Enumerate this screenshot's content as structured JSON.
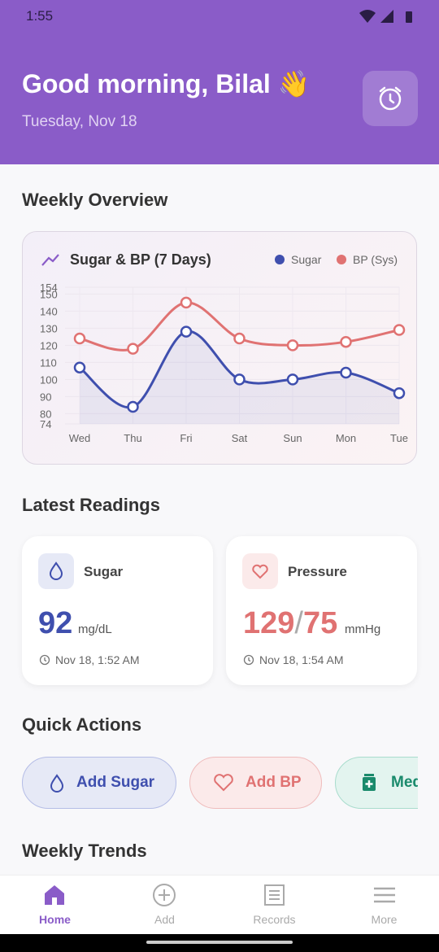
{
  "status_bar": {
    "time": "1:55"
  },
  "header": {
    "greeting": "Good morning, Bilal 👋",
    "date": "Tuesday, Nov 18"
  },
  "weekly_overview": {
    "title": "Weekly Overview"
  },
  "chart_data": {
    "type": "line",
    "title": "Sugar & BP (7 Days)",
    "categories": [
      "Wed",
      "Thu",
      "Fri",
      "Sat",
      "Sun",
      "Mon",
      "Tue"
    ],
    "series": [
      {
        "name": "Sugar",
        "color": "#3f4fae",
        "values": [
          107,
          84,
          128,
          100,
          100,
          104,
          92
        ]
      },
      {
        "name": "BP (Sys)",
        "color": "#e07272",
        "values": [
          124,
          118,
          145,
          124,
          120,
          122,
          129
        ]
      }
    ],
    "ylim": [
      74,
      154
    ],
    "yticks": [
      74,
      80,
      90,
      100,
      110,
      120,
      130,
      140,
      150,
      154
    ],
    "grid": true
  },
  "latest_readings": {
    "title": "Latest Readings",
    "sugar": {
      "label": "Sugar",
      "value": "92",
      "unit": "mg/dL",
      "time": "Nov 18, 1:52 AM"
    },
    "pressure": {
      "label": "Pressure",
      "systolic": "129",
      "separator": "/",
      "diastolic": "75",
      "unit": "mmHg",
      "time": "Nov 18, 1:54 AM"
    }
  },
  "quick_actions": {
    "title": "Quick Actions",
    "items": [
      "Add Sugar",
      "Add BP",
      "Med"
    ]
  },
  "weekly_trends": {
    "title": "Weekly Trends"
  },
  "nav": {
    "items": [
      "Home",
      "Add",
      "Records",
      "More"
    ]
  }
}
